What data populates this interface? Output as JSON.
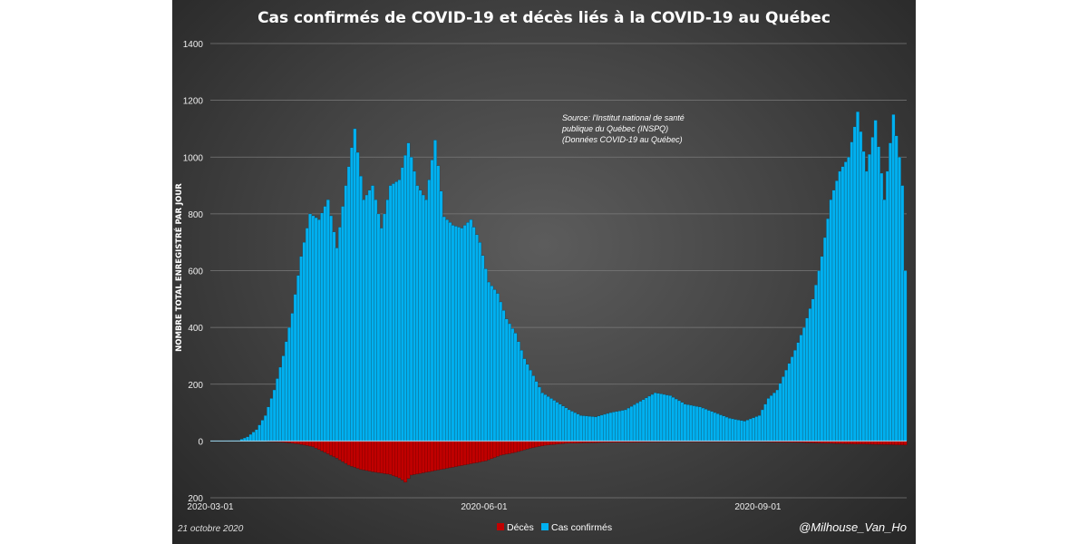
{
  "chart_data": {
    "type": "bar",
    "title": "Cas confirmés de COVID-19 et décès liés à la COVID-19 au Québec",
    "ylabel": "NOMBRE TOTAL ENREGISTRÉ PAR JOUR",
    "ylim": [
      -200,
      1400
    ],
    "yticks": [
      {
        "value": 1400,
        "label": "1400"
      },
      {
        "value": 1200,
        "label": "1200"
      },
      {
        "value": 1000,
        "label": "1000"
      },
      {
        "value": 800,
        "label": "800"
      },
      {
        "value": 600,
        "label": "600"
      },
      {
        "value": 400,
        "label": "400"
      },
      {
        "value": 200,
        "label": "200"
      },
      {
        "value": 0,
        "label": "0"
      },
      {
        "value": -200,
        "label": "200"
      }
    ],
    "xticks": [
      "2020-03-01",
      "2020-06-01",
      "2020-09-01"
    ],
    "x_range": [
      "2020-03-01",
      "2020-10-20"
    ],
    "grid": true,
    "legend_position": "bottom",
    "annotation": [
      "Source: l'Institut national de santé",
      "publique du Québec (INSPQ)",
      "(Données COVID-19 au Québec)"
    ],
    "series": [
      {
        "name": "Décès",
        "color": "#c00000",
        "points": [
          [
            "2020-03-20",
            2
          ],
          [
            "2020-03-25",
            4
          ],
          [
            "2020-03-30",
            10
          ],
          [
            "2020-04-04",
            20
          ],
          [
            "2020-04-08",
            40
          ],
          [
            "2020-04-12",
            60
          ],
          [
            "2020-04-16",
            85
          ],
          [
            "2020-04-20",
            100
          ],
          [
            "2020-04-25",
            110
          ],
          [
            "2020-04-30",
            118
          ],
          [
            "2020-05-03",
            130
          ],
          [
            "2020-05-05",
            145
          ],
          [
            "2020-05-07",
            120
          ],
          [
            "2020-05-12",
            110
          ],
          [
            "2020-05-17",
            100
          ],
          [
            "2020-05-22",
            90
          ],
          [
            "2020-05-27",
            80
          ],
          [
            "2020-06-01",
            70
          ],
          [
            "2020-06-06",
            50
          ],
          [
            "2020-06-11",
            40
          ],
          [
            "2020-06-16",
            25
          ],
          [
            "2020-06-21",
            15
          ],
          [
            "2020-06-28",
            8
          ],
          [
            "2020-07-10",
            5
          ],
          [
            "2020-08-01",
            3
          ],
          [
            "2020-09-01",
            3
          ],
          [
            "2020-09-15",
            5
          ],
          [
            "2020-10-01",
            10
          ],
          [
            "2020-10-20",
            14
          ]
        ]
      },
      {
        "name": "Cas confirmés",
        "color": "#00b0f0",
        "points": [
          [
            "2020-03-01",
            0
          ],
          [
            "2020-03-10",
            2
          ],
          [
            "2020-03-13",
            15
          ],
          [
            "2020-03-16",
            40
          ],
          [
            "2020-03-19",
            90
          ],
          [
            "2020-03-22",
            180
          ],
          [
            "2020-03-25",
            300
          ],
          [
            "2020-03-28",
            450
          ],
          [
            "2020-03-31",
            650
          ],
          [
            "2020-04-03",
            800
          ],
          [
            "2020-04-06",
            780
          ],
          [
            "2020-04-09",
            850
          ],
          [
            "2020-04-12",
            680
          ],
          [
            "2020-04-15",
            900
          ],
          [
            "2020-04-18",
            1100
          ],
          [
            "2020-04-21",
            850
          ],
          [
            "2020-04-24",
            900
          ],
          [
            "2020-04-27",
            750
          ],
          [
            "2020-04-30",
            900
          ],
          [
            "2020-05-03",
            920
          ],
          [
            "2020-05-06",
            1050
          ],
          [
            "2020-05-09",
            900
          ],
          [
            "2020-05-12",
            850
          ],
          [
            "2020-05-15",
            1060
          ],
          [
            "2020-05-18",
            790
          ],
          [
            "2020-05-21",
            760
          ],
          [
            "2020-05-24",
            750
          ],
          [
            "2020-05-27",
            780
          ],
          [
            "2020-05-30",
            700
          ],
          [
            "2020-06-02",
            560
          ],
          [
            "2020-06-05",
            520
          ],
          [
            "2020-06-08",
            430
          ],
          [
            "2020-06-11",
            380
          ],
          [
            "2020-06-14",
            290
          ],
          [
            "2020-06-17",
            230
          ],
          [
            "2020-06-20",
            170
          ],
          [
            "2020-06-23",
            150
          ],
          [
            "2020-06-26",
            130
          ],
          [
            "2020-06-29",
            110
          ],
          [
            "2020-07-03",
            90
          ],
          [
            "2020-07-08",
            85
          ],
          [
            "2020-07-13",
            100
          ],
          [
            "2020-07-18",
            110
          ],
          [
            "2020-07-23",
            140
          ],
          [
            "2020-07-28",
            170
          ],
          [
            "2020-08-02",
            160
          ],
          [
            "2020-08-07",
            130
          ],
          [
            "2020-08-12",
            120
          ],
          [
            "2020-08-17",
            100
          ],
          [
            "2020-08-22",
            80
          ],
          [
            "2020-08-27",
            70
          ],
          [
            "2020-09-01",
            90
          ],
          [
            "2020-09-04",
            150
          ],
          [
            "2020-09-07",
            180
          ],
          [
            "2020-09-10",
            250
          ],
          [
            "2020-09-13",
            320
          ],
          [
            "2020-09-16",
            400
          ],
          [
            "2020-09-19",
            500
          ],
          [
            "2020-09-22",
            650
          ],
          [
            "2020-09-25",
            850
          ],
          [
            "2020-09-28",
            950
          ],
          [
            "2020-10-01",
            1000
          ],
          [
            "2020-10-04",
            1160
          ],
          [
            "2020-10-07",
            950
          ],
          [
            "2020-10-10",
            1130
          ],
          [
            "2020-10-13",
            850
          ],
          [
            "2020-10-16",
            1150
          ],
          [
            "2020-10-18",
            1000
          ],
          [
            "2020-10-19",
            900
          ],
          [
            "2020-10-20",
            600
          ]
        ]
      }
    ]
  },
  "footer": {
    "date": "21 octobre 2020",
    "handle": "@Milhouse_Van_Ho"
  }
}
